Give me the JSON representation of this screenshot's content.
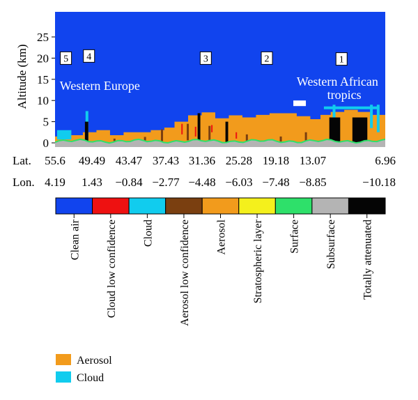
{
  "chart_data": {
    "type": "heatmap",
    "ylabel": "Altitude (km)",
    "ylim": [
      0,
      27
    ],
    "yticks": [
      0,
      5,
      10,
      15,
      20,
      25
    ],
    "x_rows": [
      {
        "label": "Lat.",
        "ticks": [
          "55.6",
          "49.49",
          "43.47",
          "37.43",
          "31.36",
          "25.28",
          "19.18",
          "13.07",
          "6.96"
        ]
      },
      {
        "label": "Lon.",
        "ticks": [
          "4.19",
          "1.43",
          "−0.84",
          "−2.77",
          "−4.48",
          "−6.03",
          "−7.48",
          "−8.85",
          "−10.18"
        ]
      }
    ],
    "regions": [
      {
        "text": "Western Europe",
        "lat": 49.0,
        "altitude": 12.5
      },
      {
        "text": "Western African",
        "lat": 14.0,
        "altitude": 13.5
      },
      {
        "text": "tropics",
        "lat": 13.0,
        "altitude": 10.4
      }
    ],
    "numbered_boxes": [
      {
        "label": "5",
        "lat": 54.0,
        "altitude": 20.0
      },
      {
        "label": "4",
        "lat": 50.6,
        "altitude": 20.5
      },
      {
        "label": "3",
        "lat": 33.4,
        "altitude": 20.0
      },
      {
        "label": "2",
        "lat": 24.4,
        "altitude": 20.0
      },
      {
        "label": "1",
        "lat": 13.4,
        "altitude": 19.8
      }
    ],
    "classes": [
      {
        "name": "Clean air",
        "color": "#1144ee"
      },
      {
        "name": "Cloud low confidence",
        "color": "#ee1111"
      },
      {
        "name": "Cloud",
        "color": "#11ccee"
      },
      {
        "name": "Aerosol low confidence",
        "color": "#7a3f10"
      },
      {
        "name": "Aerosol",
        "color": "#f29b1c"
      },
      {
        "name": "Stratospheric layer",
        "color": "#f4f01c"
      },
      {
        "name": "Surface",
        "color": "#2ee06a"
      },
      {
        "name": "Subsurface",
        "color": "#b4b4b4"
      },
      {
        "name": "Totally attenuated",
        "color": "#050505"
      }
    ],
    "aerosol_top_km": [
      [
        55.6,
        1.5
      ],
      [
        53.5,
        1.8
      ],
      [
        51.5,
        2.5
      ],
      [
        49.5,
        3.0
      ],
      [
        47.5,
        1.8
      ],
      [
        45.5,
        2.5
      ],
      [
        43.5,
        2.5
      ],
      [
        41.5,
        3.0
      ],
      [
        39.5,
        3.6
      ],
      [
        38.0,
        5.0
      ],
      [
        36.0,
        6.5
      ],
      [
        34.0,
        7.2
      ],
      [
        32.0,
        5.8
      ],
      [
        30.0,
        6.5
      ],
      [
        28.0,
        6.0
      ],
      [
        26.0,
        6.6
      ],
      [
        24.0,
        7.0
      ],
      [
        22.0,
        7.0
      ],
      [
        20.0,
        6.3
      ],
      [
        18.0,
        5.6
      ],
      [
        16.5,
        6.6
      ],
      [
        15.0,
        7.3
      ],
      [
        13.0,
        7.8
      ],
      [
        11.0,
        7.3
      ],
      [
        9.0,
        6.6
      ],
      [
        6.96,
        5.3
      ]
    ],
    "cloud_features": [
      {
        "lat": 50.9,
        "altitude_bottom": 0.5,
        "altitude_top": 7.5
      },
      {
        "lat": 14.5,
        "altitude_bottom": 5.0,
        "altitude_top": 9.0
      },
      {
        "lat": 9.0,
        "altitude_bottom": 3.5,
        "altitude_top": 9.0
      },
      {
        "lat": 8.0,
        "altitude_bottom": 2.5,
        "altitude_top": 9.0
      }
    ],
    "attenuated_columns": [
      {
        "lat_from": 15.2,
        "lat_to": 13.6,
        "altitude_top": 6.0
      },
      {
        "lat_from": 11.8,
        "lat_to": 9.6,
        "altitude_top": 6.0
      },
      {
        "lat_from": 51.2,
        "lat_to": 50.7,
        "altitude_top": 5.0
      },
      {
        "lat_from": 34.6,
        "lat_to": 34.2,
        "altitude_top": 7.0
      },
      {
        "lat_from": 30.5,
        "lat_to": 30.1,
        "altitude_top": 5.0
      }
    ],
    "legend": [
      {
        "name": "Aerosol",
        "color": "#f29b1c"
      },
      {
        "name": "Cloud",
        "color": "#11ccee"
      }
    ]
  }
}
